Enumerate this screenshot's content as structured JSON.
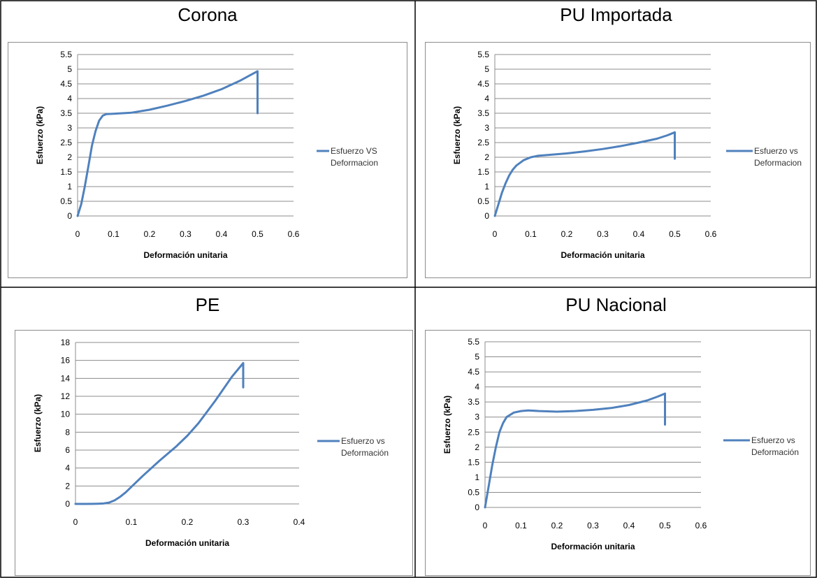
{
  "line_color": "#4f81bd",
  "grid_color": "#8c8c8c",
  "chart_data": [
    {
      "type": "line",
      "title": "Corona",
      "xlabel": "Deformación unitaria",
      "ylabel": "Esfuerzo (kPa)",
      "xlim": [
        0,
        0.6
      ],
      "ylim": [
        0,
        5.5
      ],
      "xticks": [
        "0",
        "0.1",
        "0.2",
        "0.3",
        "0.4",
        "0.5",
        "0.6"
      ],
      "yticks": [
        "0",
        "0.5",
        "1",
        "1.5",
        "2",
        "2.5",
        "3",
        "3.5",
        "4",
        "4.5",
        "5",
        "5.5"
      ],
      "legend_position": "right",
      "series": [
        {
          "name": "Esfuerzo VS Deformacion",
          "x": [
            0,
            0.01,
            0.02,
            0.03,
            0.04,
            0.05,
            0.06,
            0.07,
            0.08,
            0.1,
            0.15,
            0.2,
            0.25,
            0.3,
            0.35,
            0.4,
            0.45,
            0.48,
            0.5,
            0.5
          ],
          "y": [
            0,
            0.4,
            1.0,
            1.7,
            2.4,
            2.9,
            3.25,
            3.42,
            3.47,
            3.48,
            3.52,
            3.62,
            3.76,
            3.92,
            4.1,
            4.32,
            4.6,
            4.8,
            4.93,
            3.5
          ]
        }
      ]
    },
    {
      "type": "line",
      "title": "PU Importada",
      "xlabel": "Deformación unitaria",
      "ylabel": "Esfuerzo (kPa)",
      "xlim": [
        0,
        0.6
      ],
      "ylim": [
        0,
        5.5
      ],
      "xticks": [
        "0",
        "0.1",
        "0.2",
        "0.3",
        "0.4",
        "0.5",
        "0.6"
      ],
      "yticks": [
        "0",
        "0.5",
        "1",
        "1.5",
        "2",
        "2.5",
        "3",
        "3.5",
        "4",
        "4.5",
        "5",
        "5.5"
      ],
      "legend_position": "right",
      "series": [
        {
          "name": "Esfuerzo vs Deformacion",
          "x": [
            0,
            0.01,
            0.02,
            0.03,
            0.04,
            0.05,
            0.06,
            0.08,
            0.1,
            0.12,
            0.15,
            0.2,
            0.25,
            0.3,
            0.35,
            0.4,
            0.45,
            0.48,
            0.5,
            0.5
          ],
          "y": [
            0,
            0.4,
            0.8,
            1.12,
            1.38,
            1.58,
            1.72,
            1.9,
            2.0,
            2.05,
            2.08,
            2.13,
            2.2,
            2.28,
            2.38,
            2.5,
            2.63,
            2.75,
            2.85,
            1.95
          ]
        }
      ]
    },
    {
      "type": "line",
      "title": "PE",
      "xlabel": "Deformación unitaria",
      "ylabel": "Esfuerzo (kPa)",
      "xlim": [
        0,
        0.4
      ],
      "ylim": [
        0,
        18
      ],
      "xticks": [
        "0",
        "0.1",
        "0.2",
        "0.3",
        "0.4"
      ],
      "yticks": [
        "0",
        "2",
        "4",
        "6",
        "8",
        "10",
        "12",
        "14",
        "16",
        "18"
      ],
      "legend_position": "right",
      "series": [
        {
          "name": "Esfuerzo vs Deformación",
          "x": [
            0,
            0.02,
            0.04,
            0.05,
            0.06,
            0.07,
            0.08,
            0.09,
            0.1,
            0.12,
            0.15,
            0.18,
            0.2,
            0.22,
            0.25,
            0.28,
            0.3,
            0.3
          ],
          "y": [
            0,
            0,
            0.02,
            0.05,
            0.15,
            0.4,
            0.8,
            1.3,
            1.9,
            3.1,
            4.8,
            6.4,
            7.6,
            9.0,
            11.5,
            14.2,
            15.7,
            13.0
          ]
        }
      ]
    },
    {
      "type": "line",
      "title": "PU Nacional",
      "xlabel": "Deformación unitaria",
      "ylabel": "Esfuerzo (kPa)",
      "xlim": [
        0,
        0.6
      ],
      "ylim": [
        0,
        5.5
      ],
      "xticks": [
        "0",
        "0.1",
        "0.2",
        "0.3",
        "0.4",
        "0.5",
        "0.6"
      ],
      "yticks": [
        "0",
        "0.5",
        "1",
        "1.5",
        "2",
        "2.5",
        "3",
        "3.5",
        "4",
        "4.5",
        "5",
        "5.5"
      ],
      "legend_position": "right",
      "series": [
        {
          "name": "Esfuerzo vs Deformación",
          "x": [
            0,
            0.01,
            0.02,
            0.03,
            0.04,
            0.05,
            0.06,
            0.08,
            0.1,
            0.12,
            0.15,
            0.2,
            0.25,
            0.3,
            0.35,
            0.4,
            0.45,
            0.48,
            0.5,
            0.5
          ],
          "y": [
            0,
            0.7,
            1.4,
            2.0,
            2.5,
            2.8,
            3.0,
            3.15,
            3.2,
            3.22,
            3.2,
            3.18,
            3.2,
            3.24,
            3.3,
            3.4,
            3.55,
            3.68,
            3.78,
            2.75
          ]
        }
      ]
    }
  ]
}
